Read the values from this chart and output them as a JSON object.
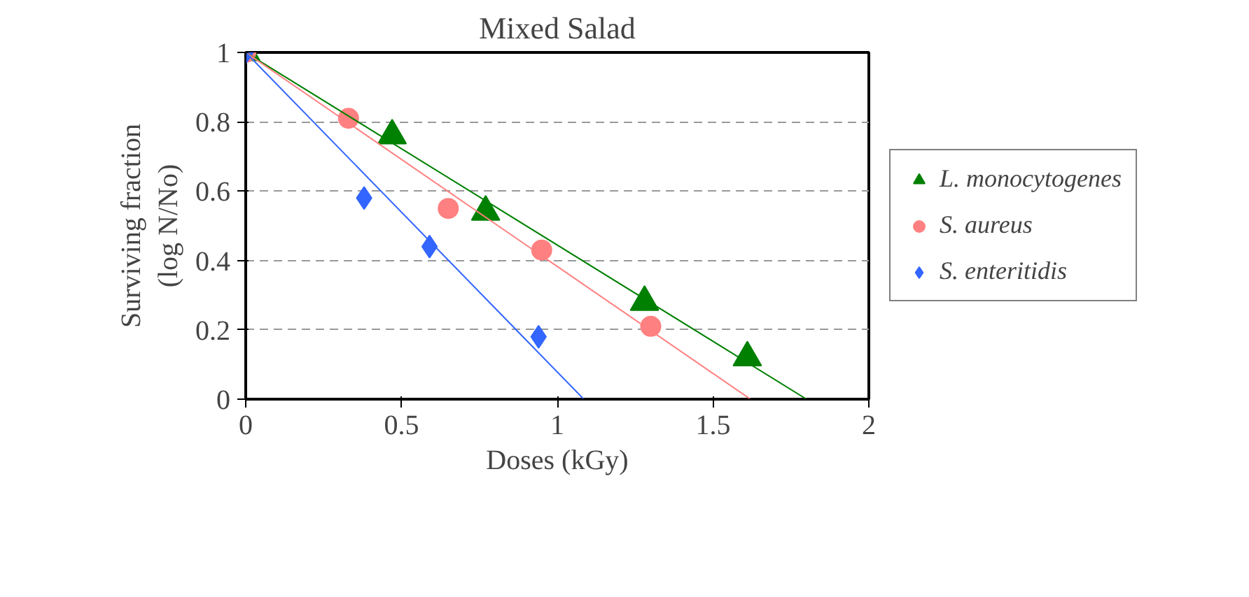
{
  "chart_data": {
    "type": "scatter",
    "title": "Mixed Salad",
    "xlabel": "Doses (kGy)",
    "ylabel": "Surviving fraction\n(log N/No)",
    "xlim": [
      0,
      2
    ],
    "ylim": [
      0,
      1
    ],
    "xticks": [
      0,
      0.5,
      1,
      1.5,
      2
    ],
    "yticks": [
      0,
      0.2,
      0.4,
      0.6,
      0.8,
      1
    ],
    "grid": "y",
    "legend": "right",
    "series": [
      {
        "name": "L. monocytogenes",
        "color": "#008000",
        "marker": "triangle",
        "x": [
          0,
          0.47,
          0.77,
          1.28,
          1.61
        ],
        "values": [
          1,
          0.76,
          0.54,
          0.28,
          0.12
        ]
      },
      {
        "name": "S. aureus",
        "color": "#ff8080",
        "marker": "circle",
        "x": [
          0,
          0.33,
          0.65,
          0.95,
          1.3
        ],
        "values": [
          1,
          0.81,
          0.55,
          0.43,
          0.21
        ]
      },
      {
        "name": "S. enteritidis",
        "color": "#3366ff",
        "marker": "diamond",
        "x": [
          0,
          0.38,
          0.59,
          0.94
        ],
        "values": [
          1,
          0.58,
          0.44,
          0.18
        ]
      },
      {
        "type": "line",
        "color": "#008000",
        "x": [
          0,
          1.8
        ],
        "values": [
          1,
          0
        ]
      },
      {
        "type": "line",
        "color": "#ff8080",
        "x": [
          0,
          1.62
        ],
        "values": [
          1,
          0
        ]
      },
      {
        "type": "line",
        "color": "#3366ff",
        "x": [
          0,
          1.085
        ],
        "values": [
          1,
          0
        ]
      }
    ]
  }
}
